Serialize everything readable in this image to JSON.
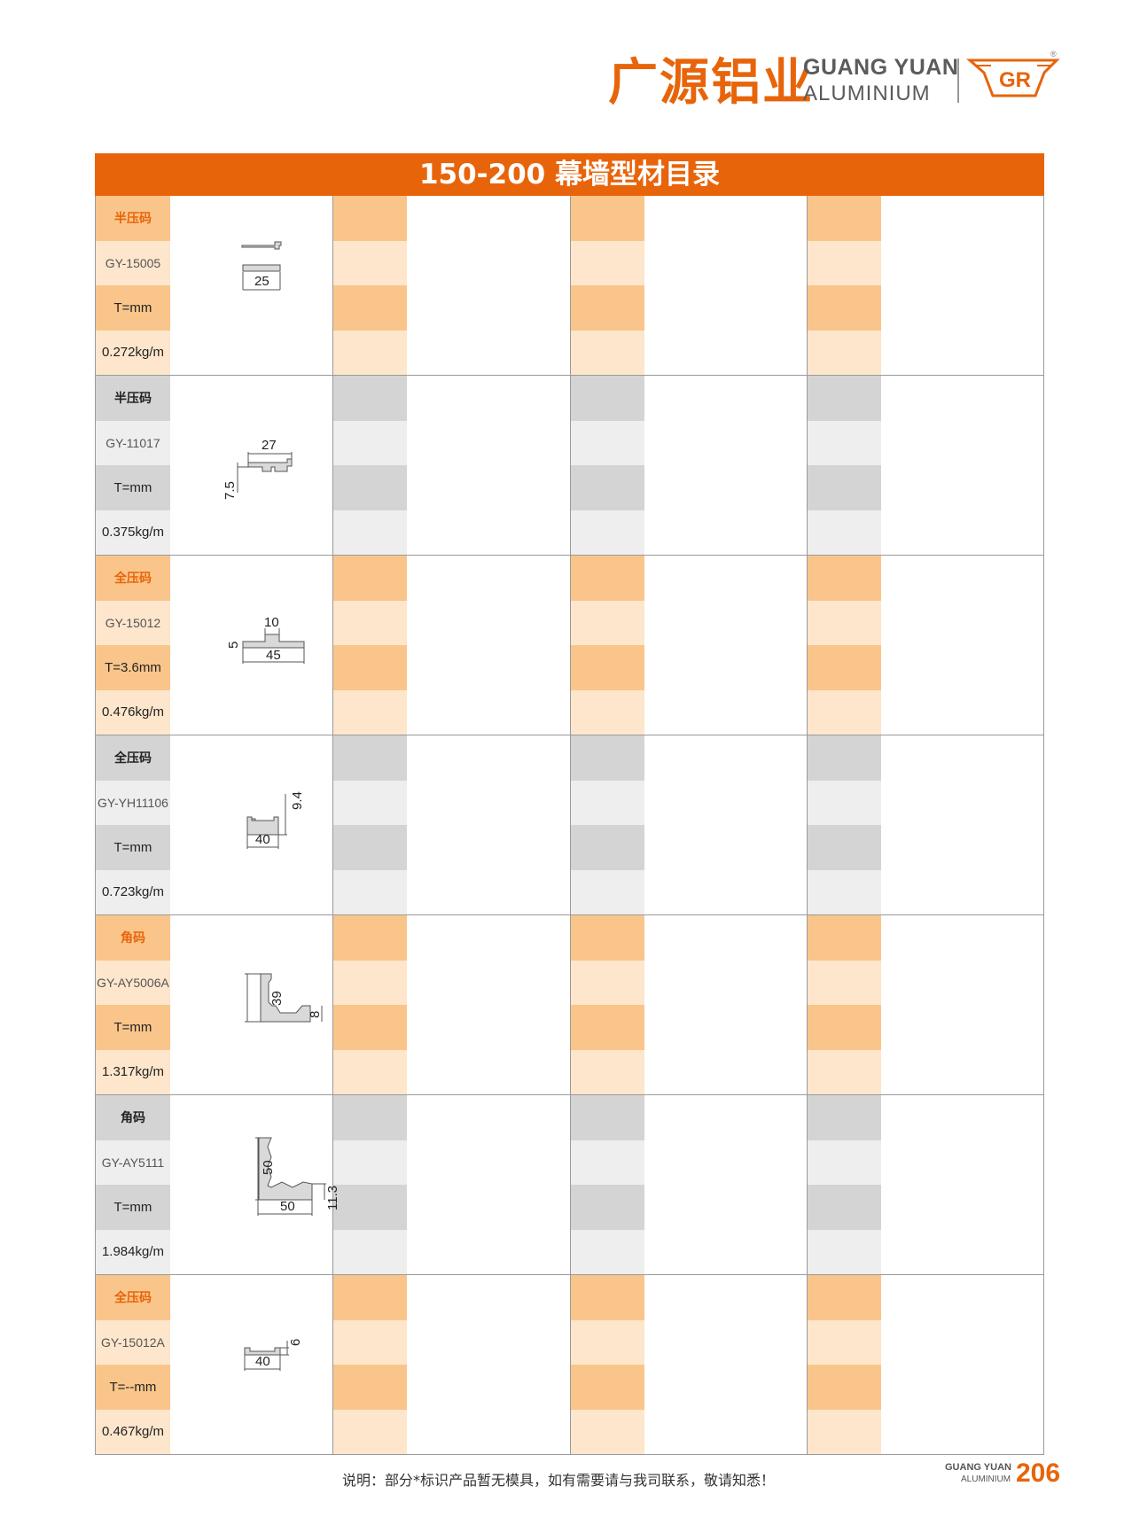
{
  "header": {
    "brand_cn": "广源铝业",
    "brand_en_line1": "GUANG YUAN",
    "brand_en_line2": "ALUMINIUM",
    "logo_letters": "GR",
    "registered_mark": "®"
  },
  "catalog": {
    "title": "150-200 幕墙型材目录",
    "accent_color": "#e8640a",
    "rows": [
      {
        "type": "半压码",
        "code": "GY-15005",
        "thickness": "T=mm",
        "weight": "0.272kg/m",
        "theme": "orange",
        "dims": [
          "25"
        ]
      },
      {
        "type": "半压码",
        "code": "GY-11017",
        "thickness": "T=mm",
        "weight": "0.375kg/m",
        "theme": "gray",
        "dims": [
          "27",
          "7.5"
        ]
      },
      {
        "type": "全压码",
        "code": "GY-15012",
        "thickness": "T=3.6mm",
        "weight": "0.476kg/m",
        "theme": "orange",
        "dims": [
          "10",
          "5",
          "45"
        ]
      },
      {
        "type": "全压码",
        "code": "GY-YH11106",
        "thickness": "T=mm",
        "weight": "0.723kg/m",
        "theme": "gray",
        "dims": [
          "9.4",
          "40"
        ]
      },
      {
        "type": "角码",
        "code": "GY-AY5006A",
        "thickness": "T=mm",
        "weight": "1.317kg/m",
        "theme": "orange",
        "dims": [
          "39",
          "8"
        ]
      },
      {
        "type": "角码",
        "code": "GY-AY5111",
        "thickness": "T=mm",
        "weight": "1.984kg/m",
        "theme": "gray",
        "dims": [
          "50",
          "11.3",
          "50"
        ]
      },
      {
        "type": "全压码",
        "code": "GY-15012A",
        "thickness": "T=--mm",
        "weight": "0.467kg/m",
        "theme": "orange",
        "dims": [
          "6",
          "40"
        ]
      }
    ]
  },
  "footer": {
    "note": "说明：部分*标识产品暂无模具，如有需要请与我司联系，敬请知悉！",
    "brand_line1": "GUANG YUAN",
    "brand_line2": "ALUMINIUM",
    "page_number": "206"
  }
}
